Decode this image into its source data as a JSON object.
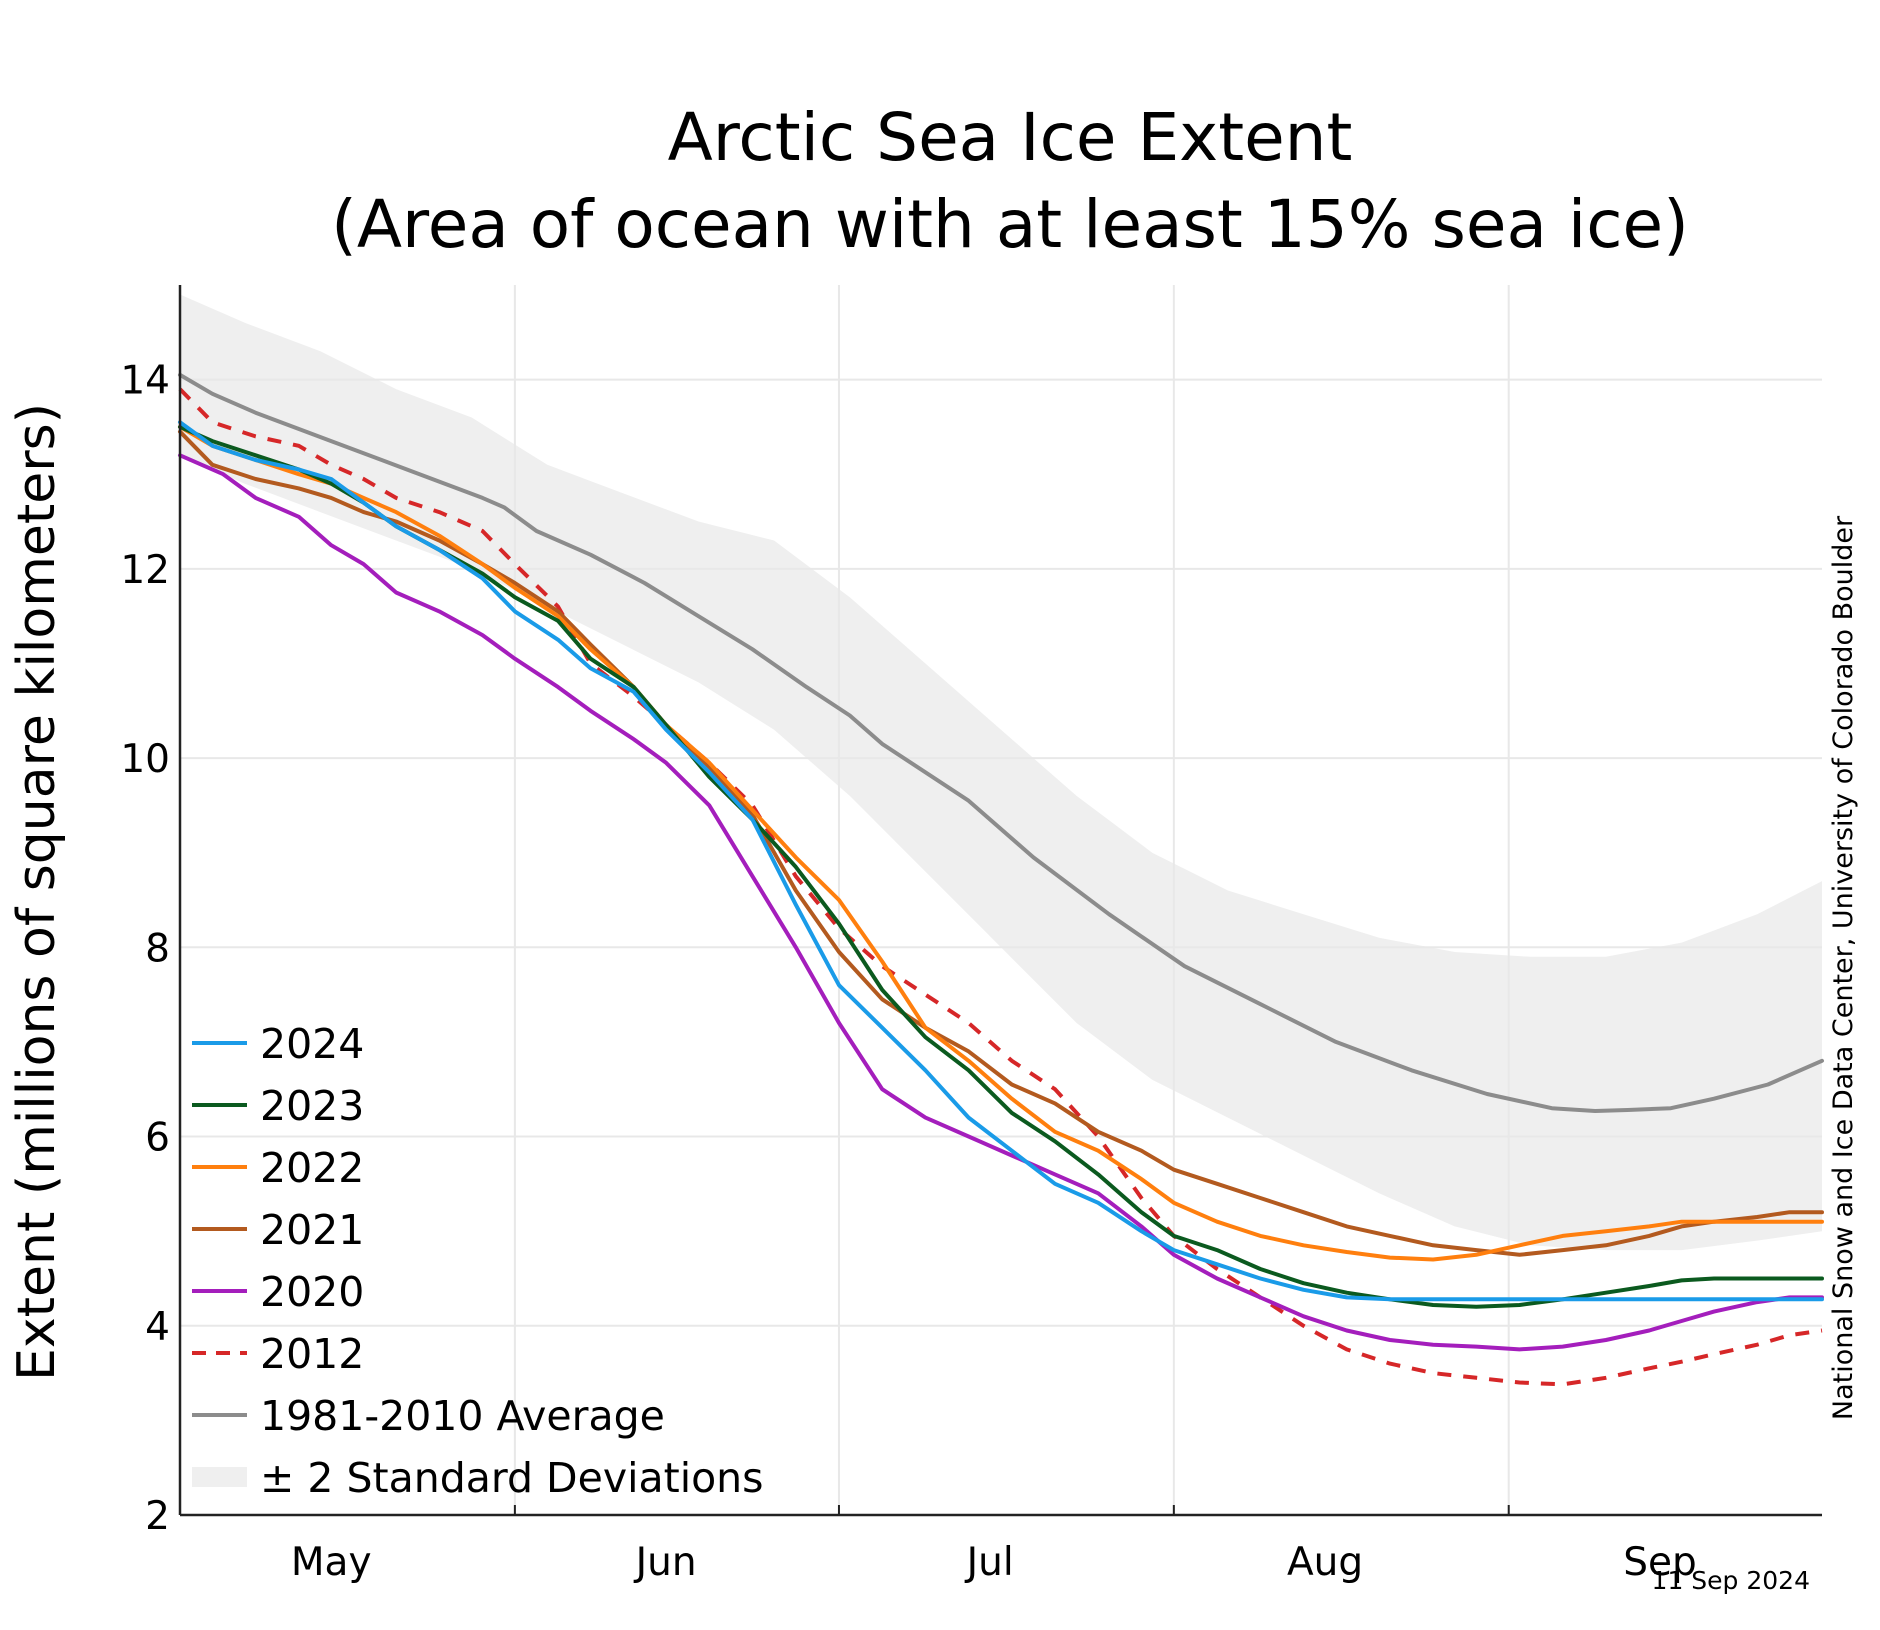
{
  "chart_data": {
    "type": "line",
    "title": "Arctic Sea Ice Extent",
    "subtitle": "(Area of ocean with at least 15% sea ice)",
    "xlabel": "",
    "ylabel": "Extent (millions of square kilometers)",
    "credit": "National Snow and Ice Data Center, University of Colorado Boulder",
    "date": "11 Sep 2024",
    "x_unit": "day of year",
    "xlim": [
      107,
      259
    ],
    "ylim": [
      2,
      15
    ],
    "y_ticks": [
      2,
      4,
      6,
      8,
      10,
      12,
      14
    ],
    "x_ticks": [
      {
        "label": "May",
        "day": 121
      },
      {
        "label": "Jun",
        "day": 152
      },
      {
        "label": "Jul",
        "day": 182
      },
      {
        "label": "Aug",
        "day": 213
      },
      {
        "label": "Sep",
        "day": 244
      }
    ],
    "x_gridlines": [
      138,
      168,
      199,
      230
    ],
    "y_gridlines": [
      4,
      6,
      8,
      10,
      12,
      14
    ],
    "grid": true,
    "legend_position": "bottom-left",
    "band": {
      "name": "± 2 Standard Deviations",
      "color": "#efefef",
      "x": [
        107,
        113,
        120,
        127,
        134,
        141,
        148,
        155,
        162,
        169,
        176,
        183,
        190,
        197,
        204,
        211,
        218,
        225,
        232,
        239,
        246,
        253,
        259
      ],
      "upper": [
        14.9,
        14.6,
        14.3,
        13.9,
        13.6,
        13.1,
        12.8,
        12.5,
        12.3,
        11.7,
        11.0,
        10.3,
        9.6,
        9.0,
        8.6,
        8.35,
        8.1,
        7.95,
        7.9,
        7.9,
        8.05,
        8.35,
        8.7
      ],
      "lower": [
        13.2,
        12.9,
        12.6,
        12.3,
        12.0,
        11.6,
        11.2,
        10.8,
        10.3,
        9.6,
        8.8,
        8.0,
        7.2,
        6.6,
        6.2,
        5.8,
        5.4,
        5.05,
        4.85,
        4.8,
        4.8,
        4.9,
        5.0
      ]
    },
    "series": [
      {
        "name": "1981-2010 Average",
        "color": "#8c8c8c",
        "dash": false,
        "x": [
          107,
          110,
          114,
          121,
          128,
          135,
          137,
          140,
          145,
          150,
          155,
          160,
          165,
          169,
          172,
          180,
          186,
          193,
          200,
          207,
          214,
          221,
          228,
          234,
          238,
          241,
          245,
          249,
          254,
          259
        ],
        "y": [
          14.05,
          13.85,
          13.65,
          13.35,
          13.05,
          12.75,
          12.65,
          12.4,
          12.15,
          11.85,
          11.5,
          11.15,
          10.75,
          10.45,
          10.15,
          9.55,
          8.95,
          8.35,
          7.8,
          7.4,
          7.0,
          6.7,
          6.45,
          6.3,
          6.27,
          6.28,
          6.3,
          6.4,
          6.55,
          6.8
        ]
      },
      {
        "name": "2012",
        "color": "#d62728",
        "dash": true,
        "x": [
          107,
          110,
          114,
          118,
          121,
          124,
          127,
          131,
          135,
          138,
          142,
          145,
          149,
          152,
          156,
          160,
          164,
          168,
          172,
          176,
          180,
          184,
          188,
          192,
          196,
          199,
          203,
          207,
          211,
          215,
          219,
          223,
          227,
          231,
          235,
          239,
          243,
          246,
          249,
          253,
          256,
          259
        ],
        "y": [
          13.9,
          13.55,
          13.4,
          13.3,
          13.1,
          12.95,
          12.75,
          12.6,
          12.4,
          12.05,
          11.6,
          11.0,
          10.65,
          10.35,
          9.95,
          9.5,
          8.75,
          8.2,
          7.8,
          7.5,
          7.2,
          6.8,
          6.5,
          6.0,
          5.35,
          4.95,
          4.6,
          4.3,
          4.0,
          3.75,
          3.6,
          3.5,
          3.45,
          3.4,
          3.38,
          3.45,
          3.55,
          3.62,
          3.7,
          3.8,
          3.9,
          3.95
        ]
      },
      {
        "name": "2020",
        "color": "#a41ebc",
        "dash": false,
        "x": [
          107,
          111,
          114,
          118,
          121,
          124,
          127,
          131,
          135,
          138,
          142,
          145,
          149,
          152,
          156,
          160,
          164,
          168,
          172,
          176,
          180,
          184,
          188,
          192,
          196,
          199,
          203,
          207,
          211,
          215,
          219,
          223,
          227,
          231,
          235,
          239,
          243,
          246,
          249,
          253,
          256,
          259
        ],
        "y": [
          13.2,
          13.0,
          12.75,
          12.55,
          12.25,
          12.05,
          11.75,
          11.55,
          11.3,
          11.05,
          10.75,
          10.5,
          10.2,
          9.95,
          9.5,
          8.75,
          8.0,
          7.2,
          6.5,
          6.2,
          6.0,
          5.8,
          5.6,
          5.4,
          5.05,
          4.75,
          4.5,
          4.3,
          4.1,
          3.95,
          3.85,
          3.8,
          3.78,
          3.75,
          3.78,
          3.85,
          3.95,
          4.05,
          4.15,
          4.25,
          4.3,
          4.3
        ]
      },
      {
        "name": "2021",
        "color": "#b35a1f",
        "dash": false,
        "x": [
          107,
          110,
          114,
          118,
          121,
          124,
          127,
          131,
          135,
          138,
          142,
          145,
          149,
          152,
          156,
          160,
          164,
          168,
          172,
          176,
          180,
          184,
          188,
          192,
          196,
          199,
          203,
          207,
          211,
          215,
          219,
          223,
          227,
          231,
          235,
          239,
          243,
          246,
          249,
          253,
          256,
          259
        ],
        "y": [
          13.45,
          13.1,
          12.95,
          12.85,
          12.75,
          12.6,
          12.5,
          12.3,
          12.05,
          11.85,
          11.55,
          11.2,
          10.75,
          10.35,
          9.9,
          9.4,
          8.6,
          7.95,
          7.45,
          7.15,
          6.9,
          6.55,
          6.35,
          6.05,
          5.85,
          5.65,
          5.5,
          5.35,
          5.2,
          5.05,
          4.95,
          4.85,
          4.8,
          4.75,
          4.8,
          4.85,
          4.95,
          5.05,
          5.1,
          5.15,
          5.2,
          5.2
        ]
      },
      {
        "name": "2022",
        "color": "#ff7f0e",
        "dash": false,
        "x": [
          107,
          110,
          114,
          118,
          121,
          124,
          127,
          131,
          135,
          138,
          142,
          145,
          149,
          152,
          156,
          160,
          164,
          168,
          172,
          176,
          180,
          184,
          188,
          192,
          196,
          199,
          203,
          207,
          211,
          215,
          219,
          223,
          227,
          231,
          235,
          239,
          243,
          246,
          249,
          253,
          256,
          259
        ],
        "y": [
          13.5,
          13.3,
          13.15,
          13.0,
          12.9,
          12.75,
          12.6,
          12.35,
          12.05,
          11.8,
          11.5,
          11.15,
          10.75,
          10.35,
          9.95,
          9.45,
          8.95,
          8.5,
          7.85,
          7.15,
          6.8,
          6.4,
          6.05,
          5.85,
          5.55,
          5.3,
          5.1,
          4.95,
          4.85,
          4.78,
          4.72,
          4.7,
          4.75,
          4.85,
          4.95,
          5.0,
          5.05,
          5.1,
          5.1,
          5.1,
          5.1,
          5.1
        ]
      },
      {
        "name": "2023",
        "color": "#0b5a1f",
        "dash": false,
        "x": [
          107,
          110,
          114,
          118,
          121,
          124,
          127,
          131,
          135,
          138,
          142,
          145,
          149,
          152,
          156,
          160,
          164,
          168,
          172,
          176,
          180,
          184,
          188,
          192,
          196,
          199,
          203,
          207,
          211,
          215,
          219,
          223,
          227,
          231,
          235,
          239,
          243,
          246,
          249,
          253,
          256,
          259
        ],
        "y": [
          13.5,
          13.35,
          13.2,
          13.05,
          12.9,
          12.7,
          12.45,
          12.2,
          11.95,
          11.7,
          11.45,
          11.05,
          10.75,
          10.35,
          9.8,
          9.35,
          8.85,
          8.25,
          7.55,
          7.05,
          6.7,
          6.25,
          5.95,
          5.6,
          5.2,
          4.95,
          4.8,
          4.6,
          4.45,
          4.35,
          4.28,
          4.22,
          4.2,
          4.22,
          4.28,
          4.35,
          4.42,
          4.48,
          4.5,
          4.5,
          4.5,
          4.5
        ]
      },
      {
        "name": "2024",
        "color": "#1a9be8",
        "dash": false,
        "x": [
          107,
          110,
          114,
          118,
          121,
          124,
          127,
          131,
          135,
          138,
          142,
          145,
          149,
          152,
          156,
          160,
          164,
          168,
          172,
          176,
          180,
          184,
          188,
          192,
          196,
          199,
          203,
          207,
          211,
          215,
          219,
          223,
          227,
          231,
          235,
          239,
          243,
          246,
          249,
          253,
          256,
          259
        ],
        "y": [
          13.55,
          13.3,
          13.15,
          13.05,
          12.95,
          12.7,
          12.45,
          12.2,
          11.9,
          11.55,
          11.25,
          10.95,
          10.7,
          10.3,
          9.85,
          9.35,
          8.45,
          7.6,
          7.15,
          6.7,
          6.2,
          5.85,
          5.5,
          5.3,
          5.0,
          4.8,
          4.65,
          4.5,
          4.38,
          4.3,
          4.28,
          4.28,
          4.28,
          4.28,
          4.28,
          4.28,
          4.28,
          4.28,
          4.28,
          4.28,
          4.28,
          4.28
        ]
      }
    ],
    "legend_order": [
      "2024",
      "2023",
      "2022",
      "2021",
      "2020",
      "2012",
      "1981-2010 Average",
      "± 2 Standard Deviations"
    ]
  }
}
